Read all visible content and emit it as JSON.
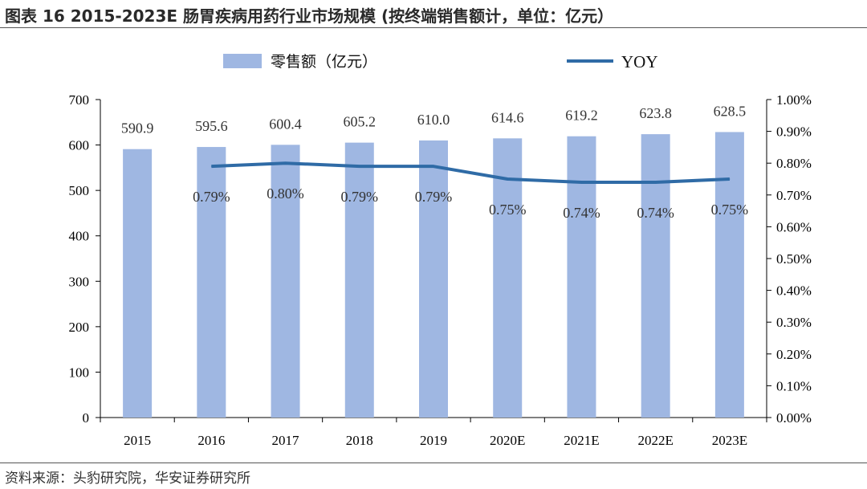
{
  "header": {
    "title": "图表 16 2015-2023E 肠胃疾病用药行业市场规模 (按终端销售额计，单位：亿元）"
  },
  "footer": {
    "source": "资料来源：头豹研究院，华安证券研究所"
  },
  "chart_data": {
    "type": "bar",
    "categories": [
      "2015",
      "2016",
      "2017",
      "2018",
      "2019",
      "2020E",
      "2021E",
      "2022E",
      "2023E"
    ],
    "series": [
      {
        "name": "零售额（亿元）",
        "type": "bar",
        "axis": "left",
        "color": "#9fb7e2",
        "values": [
          590.9,
          595.6,
          600.4,
          605.2,
          610.0,
          614.6,
          619.2,
          623.8,
          628.5
        ],
        "labels": [
          "590.9",
          "595.6",
          "600.4",
          "605.2",
          "610.0",
          "614.6",
          "619.2",
          "623.8",
          "628.5"
        ]
      },
      {
        "name": "YOY",
        "type": "line",
        "axis": "right",
        "color": "#2f6ba6",
        "values": [
          null,
          0.79,
          0.8,
          0.79,
          0.79,
          0.75,
          0.74,
          0.74,
          0.75
        ],
        "labels": [
          "",
          "0.79%",
          "0.80%",
          "0.79%",
          "0.79%",
          "0.75%",
          "0.74%",
          "0.74%",
          "0.75%"
        ]
      }
    ],
    "ylim": [
      0,
      700
    ],
    "yticks": [
      "0",
      "100",
      "200",
      "300",
      "400",
      "500",
      "600",
      "700"
    ],
    "y2lim": [
      0,
      1.0
    ],
    "y2ticks": [
      "0.00%",
      "0.10%",
      "0.20%",
      "0.30%",
      "0.40%",
      "0.50%",
      "0.60%",
      "0.70%",
      "0.80%",
      "0.90%",
      "1.00%"
    ],
    "grid": false,
    "legend_position": "top"
  }
}
